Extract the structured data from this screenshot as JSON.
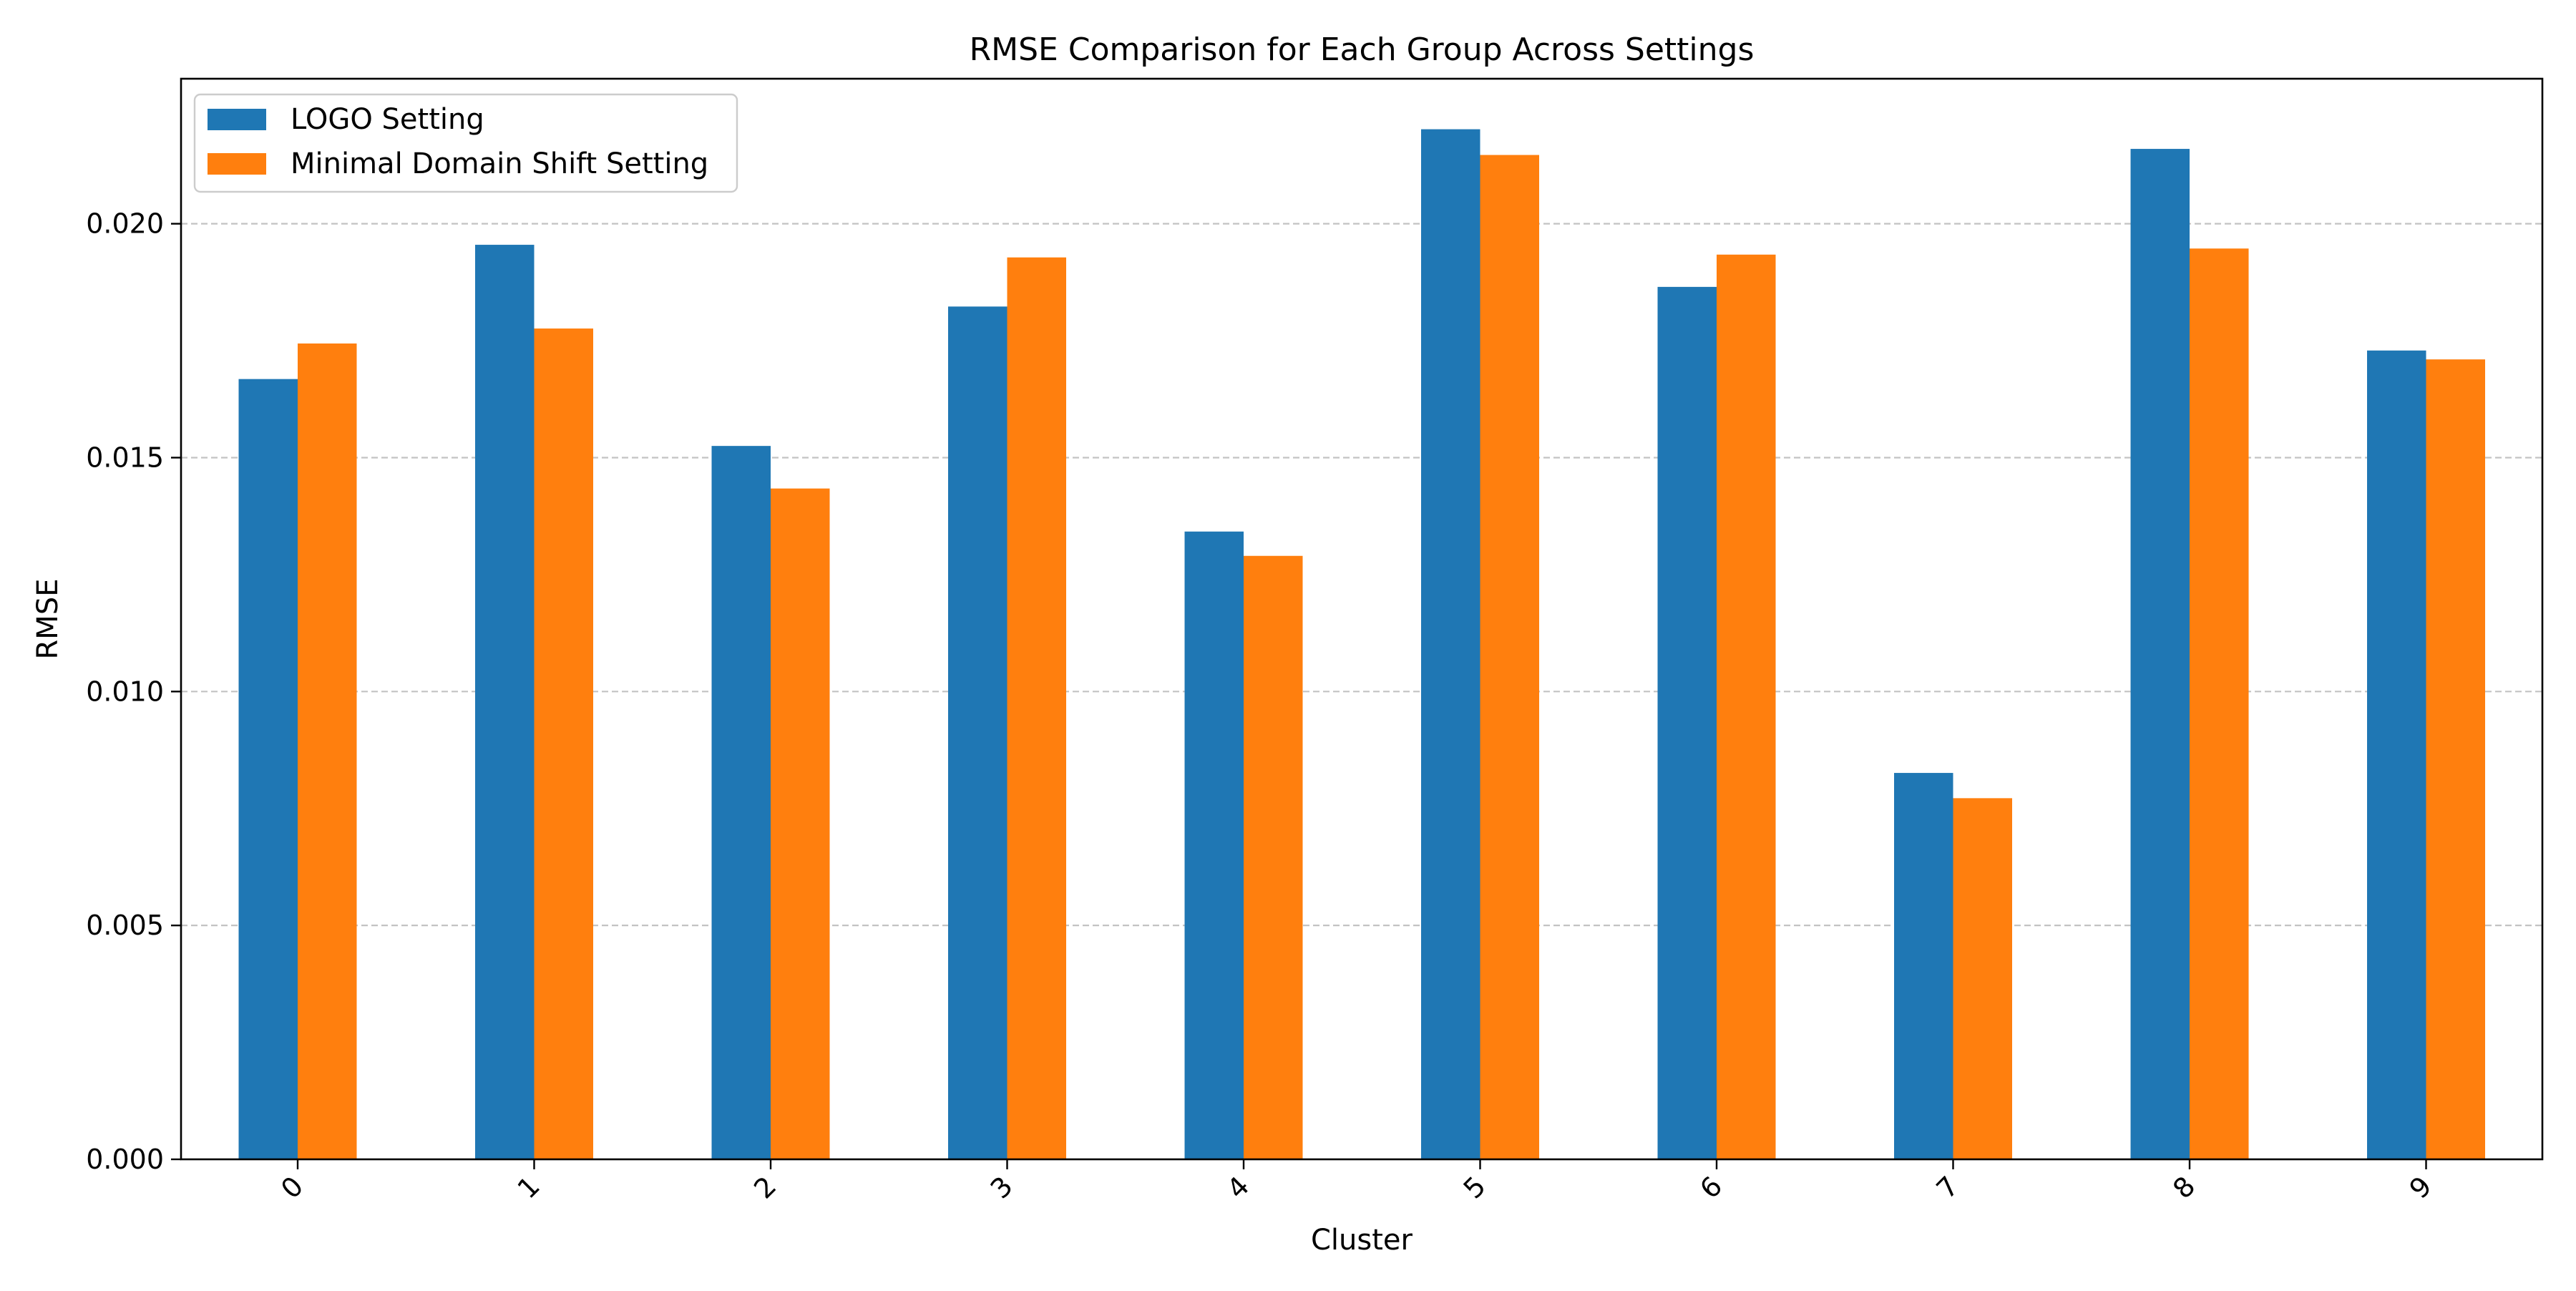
{
  "chart_data": {
    "type": "bar",
    "title": "RMSE Comparison for Each Group Across Settings",
    "xlabel": "Cluster",
    "ylabel": "RMSE",
    "categories": [
      "0",
      "1",
      "2",
      "3",
      "4",
      "5",
      "6",
      "7",
      "8",
      "9"
    ],
    "series": [
      {
        "name": "LOGO Setting",
        "color": "#1f77b4",
        "values": [
          0.01668,
          0.01955,
          0.01525,
          0.01823,
          0.01342,
          0.02202,
          0.01865,
          0.00826,
          0.0216,
          0.01729
        ]
      },
      {
        "name": "Minimal Domain Shift Setting",
        "color": "#ff7f0e",
        "values": [
          0.01744,
          0.01776,
          0.01434,
          0.01928,
          0.0129,
          0.02147,
          0.01934,
          0.00772,
          0.01947,
          0.0171
        ]
      }
    ],
    "ylim": [
      0,
      0.0231
    ],
    "yticks": [
      "0.000",
      "0.005",
      "0.010",
      "0.015",
      "0.020"
    ],
    "ytick_values": [
      0,
      0.005,
      0.01,
      0.015,
      0.02
    ],
    "grid": "y-dashed",
    "legend_position": "upper-left"
  }
}
